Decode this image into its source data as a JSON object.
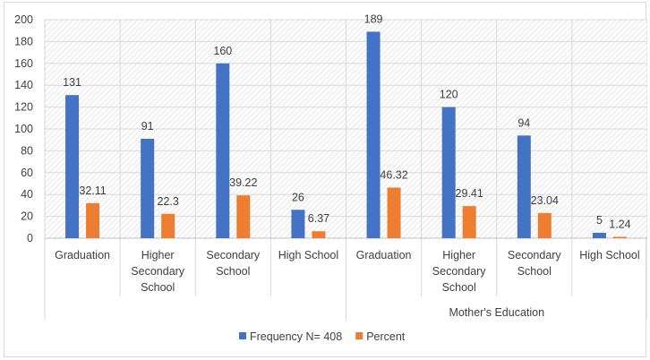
{
  "chart_data": {
    "type": "bar",
    "title": "",
    "xlabel": "",
    "ylabel": "",
    "ylim": [
      0,
      200
    ],
    "yticks": [
      0,
      20,
      40,
      60,
      80,
      100,
      120,
      140,
      160,
      180,
      200
    ],
    "grid": true,
    "legend_position": "bottom",
    "categories": [
      [
        "Graduation"
      ],
      [
        "Higher",
        "Secondary",
        "School"
      ],
      [
        "Secondary",
        "School"
      ],
      [
        "High School"
      ],
      [
        "Graduation"
      ],
      [
        "Higher",
        "Secondary",
        "School"
      ],
      [
        "Secondary",
        "School"
      ],
      [
        "High School"
      ]
    ],
    "groups": [
      {
        "label": "",
        "start": 0,
        "end": 3
      },
      {
        "label": "Mother's Education",
        "start": 4,
        "end": 7
      }
    ],
    "series": [
      {
        "name": "Frequency N= 408",
        "color": "#4472c4",
        "values": [
          131,
          91,
          160,
          26,
          189,
          120,
          94,
          5
        ],
        "labels": [
          "131",
          "91",
          "160",
          "26",
          "189",
          "120",
          "94",
          "5"
        ]
      },
      {
        "name": "Percent",
        "color": "#ed7d31",
        "values": [
          32.11,
          22.3,
          39.22,
          6.37,
          46.32,
          29.41,
          23.04,
          1.24
        ],
        "labels": [
          "32.11",
          "22.3",
          "39.22",
          "6.37",
          "46.32",
          "29.41",
          "23.04",
          "1.24"
        ]
      }
    ]
  }
}
